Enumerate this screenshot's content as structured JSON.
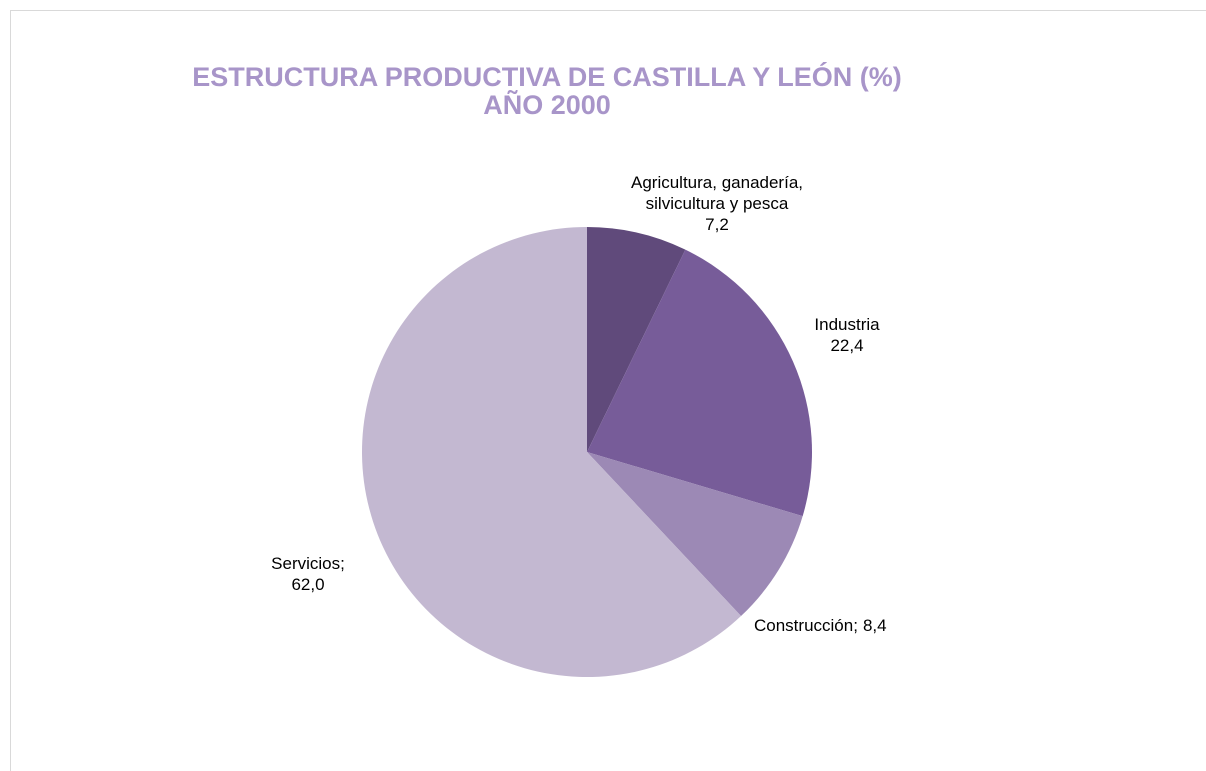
{
  "chart_data": {
    "type": "pie",
    "title": "ESTRUCTURA PRODUCTIVA DE CASTILLA Y LEÓN (%)",
    "subtitle": "AÑO 2000",
    "categories": [
      "Agricultura, ganadería, silvicultura y pesca",
      "Industria",
      "Construcción;",
      "Servicios;"
    ],
    "values": [
      7.2,
      22.4,
      8.4,
      62.0
    ],
    "value_labels": [
      "7,2",
      "22,4",
      "8,4",
      "62,0"
    ],
    "colors": [
      "#604a7b",
      "#775c99",
      "#9c89b5",
      "#c3b8d1"
    ]
  }
}
